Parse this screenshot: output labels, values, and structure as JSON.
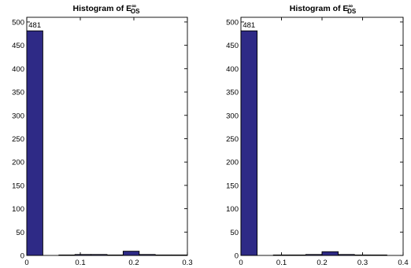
{
  "chart_data": [
    {
      "type": "bar",
      "title": "Histogram of E",
      "title_sup": "∞",
      "title_sub": "OS",
      "xlim": [
        0,
        0.3
      ],
      "ylim": [
        0,
        510
      ],
      "xticks": [
        0,
        0.1,
        0.2,
        0.3
      ],
      "xtick_labels": [
        "0",
        "0.1",
        "0.2",
        "0.3"
      ],
      "yticks": [
        0,
        50,
        100,
        150,
        200,
        250,
        300,
        350,
        400,
        450,
        500
      ],
      "ytick_labels": [
        "0",
        "50",
        "100",
        "150",
        "200",
        "250",
        "300",
        "350",
        "400",
        "450",
        "500"
      ],
      "bin_width": 0.03,
      "bin_left_edges": [
        0,
        0.03,
        0.06,
        0.09,
        0.12,
        0.15,
        0.18,
        0.21,
        0.24,
        0.27
      ],
      "values": [
        481,
        0,
        1,
        2,
        2,
        1,
        9,
        2,
        1,
        1
      ],
      "data_labels": [
        {
          "bin": 0,
          "text": "481"
        }
      ]
    },
    {
      "type": "bar",
      "title": "Histogram of E",
      "title_sup": "∞",
      "title_sub": "DS",
      "xlim": [
        0,
        0.4
      ],
      "ylim": [
        0,
        510
      ],
      "xticks": [
        0,
        0.1,
        0.2,
        0.3,
        0.4
      ],
      "xtick_labels": [
        "0",
        "0.1",
        "0.2",
        "0.3",
        "0.4"
      ],
      "yticks": [
        0,
        50,
        100,
        150,
        200,
        250,
        300,
        350,
        400,
        450,
        500
      ],
      "ytick_labels": [
        "0",
        "50",
        "100",
        "150",
        "200",
        "250",
        "300",
        "350",
        "400",
        "450",
        "500"
      ],
      "bin_width": 0.04,
      "bin_left_edges": [
        0,
        0.04,
        0.08,
        0.12,
        0.16,
        0.2,
        0.24,
        0.28,
        0.32,
        0.36
      ],
      "values": [
        481,
        0,
        1,
        1,
        2,
        8,
        2,
        1,
        1,
        0
      ],
      "data_labels": [
        {
          "bin": 0,
          "text": "481"
        }
      ]
    }
  ]
}
